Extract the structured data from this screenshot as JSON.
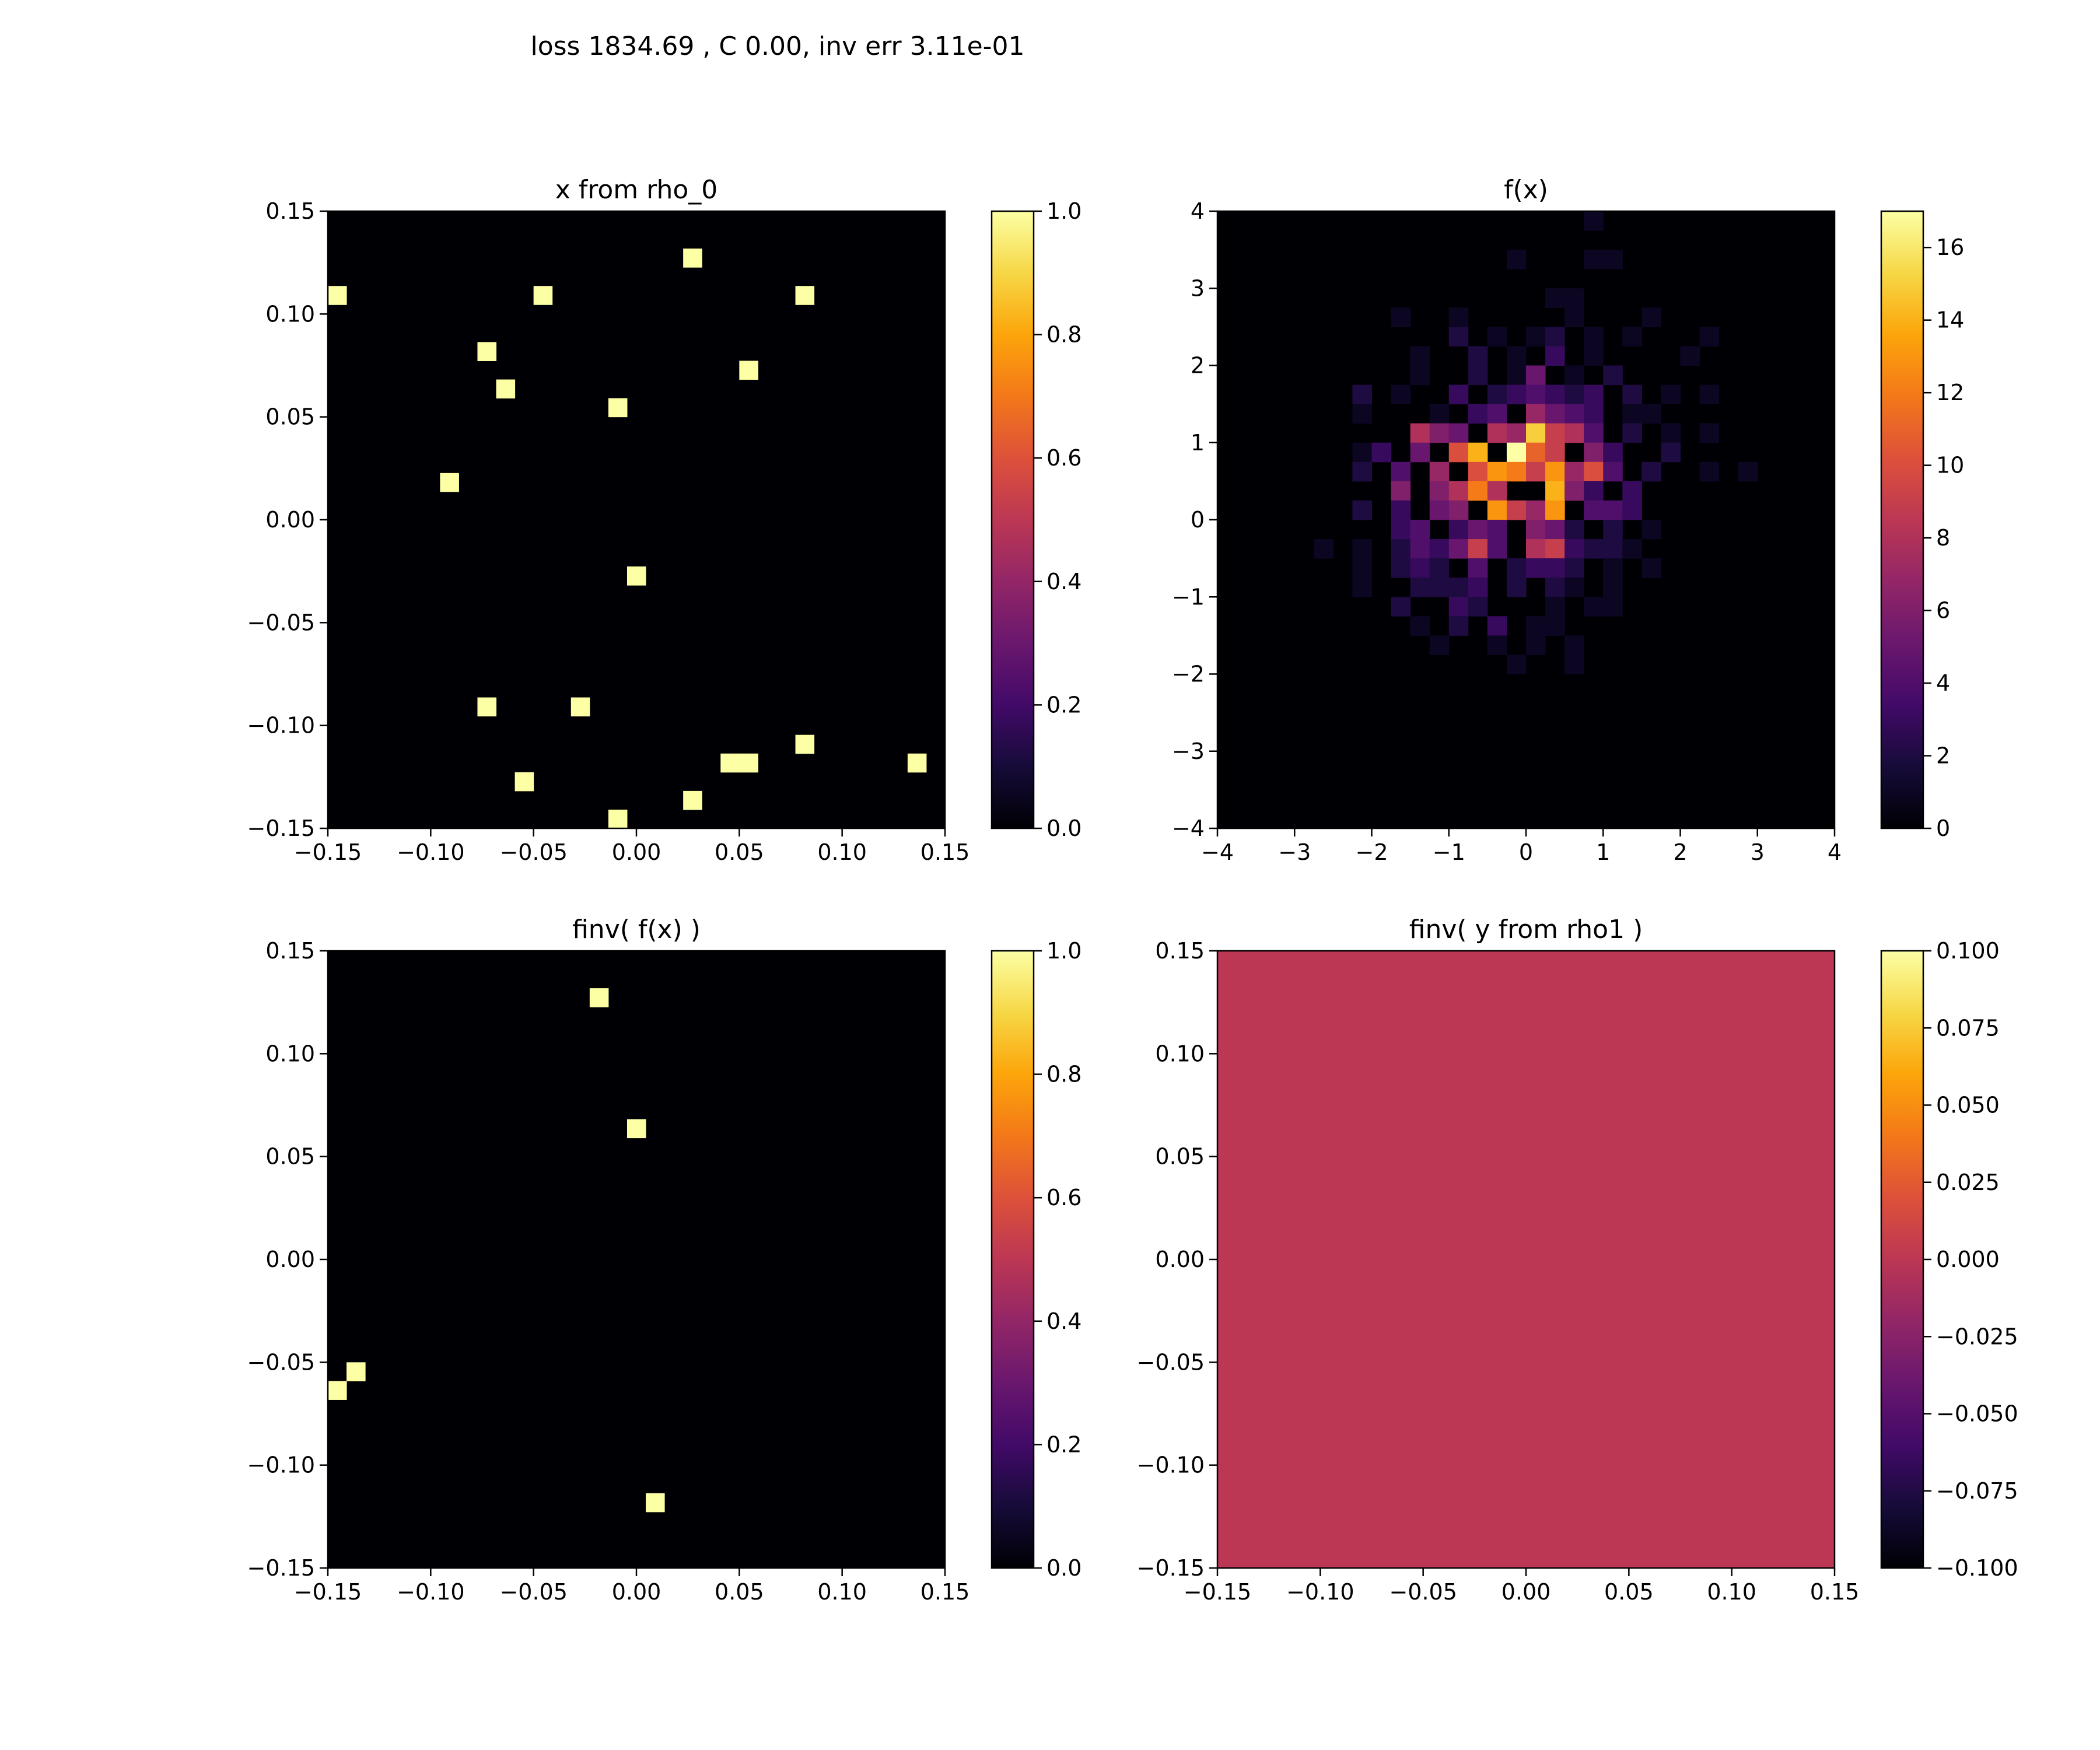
{
  "figure": {
    "suptitle": "loss 1834.69  ,  C 0.00, inv err 3.11e-01"
  },
  "chart_data": [
    {
      "type": "heatmap",
      "title": "x from rho_0",
      "xlim": [
        -0.15,
        0.15
      ],
      "ylim": [
        -0.15,
        0.15
      ],
      "xticks": [
        "−0.15",
        "−0.10",
        "−0.05",
        "0.00",
        "0.05",
        "0.10",
        "0.15"
      ],
      "yticks": [
        "−0.15",
        "−0.10",
        "−0.05",
        "0.00",
        "0.05",
        "0.10",
        "0.15"
      ],
      "bins": 33,
      "colormap": "inferno",
      "background_value": 0,
      "vmin": 0,
      "vmax": 1,
      "colorbar_ticks": [
        "0.0",
        "0.2",
        "0.4",
        "0.6",
        "0.8",
        "1.0"
      ],
      "cells": [
        {
          "x": -0.145,
          "y": 0.109,
          "v": 1
        },
        {
          "x": -0.045,
          "y": 0.109,
          "v": 1
        },
        {
          "x": 0.027,
          "y": 0.127,
          "v": 1
        },
        {
          "x": 0.082,
          "y": 0.109,
          "v": 1
        },
        {
          "x": -0.073,
          "y": 0.082,
          "v": 1
        },
        {
          "x": -0.064,
          "y": 0.064,
          "v": 1
        },
        {
          "x": 0.055,
          "y": 0.073,
          "v": 1
        },
        {
          "x": -0.009,
          "y": 0.055,
          "v": 1
        },
        {
          "x": -0.091,
          "y": 0.018,
          "v": 1
        },
        {
          "x": 0.0,
          "y": -0.027,
          "v": 1
        },
        {
          "x": -0.073,
          "y": -0.091,
          "v": 1
        },
        {
          "x": -0.027,
          "y": -0.091,
          "v": 1
        },
        {
          "x": 0.082,
          "y": -0.109,
          "v": 1
        },
        {
          "x": 0.045,
          "y": -0.118,
          "v": 1
        },
        {
          "x": 0.055,
          "y": -0.118,
          "v": 1
        },
        {
          "x": 0.136,
          "y": -0.118,
          "v": 1
        },
        {
          "x": -0.055,
          "y": -0.127,
          "v": 1
        },
        {
          "x": 0.027,
          "y": -0.136,
          "v": 1
        },
        {
          "x": -0.009,
          "y": -0.145,
          "v": 1
        }
      ]
    },
    {
      "type": "heatmap",
      "title": "f(x)",
      "xlim": [
        -4,
        4
      ],
      "ylim": [
        -4,
        4
      ],
      "xticks": [
        "−4",
        "−3",
        "−2",
        "−1",
        "0",
        "1",
        "2",
        "3",
        "4"
      ],
      "yticks": [
        "−4",
        "−3",
        "−2",
        "−1",
        "0",
        "1",
        "2",
        "3",
        "4"
      ],
      "bins": 32,
      "colormap": "inferno",
      "background_value": 0,
      "vmin": 0,
      "vmax": 17,
      "colorbar_ticks": [
        "0",
        "2",
        "4",
        "6",
        "8",
        "10",
        "12",
        "14",
        "16"
      ],
      "cells": [
        {
          "x": 0.94,
          "y": 3.88,
          "v": 1
        },
        {
          "x": -0.25,
          "y": 3.38,
          "v": 1
        },
        {
          "x": 0.94,
          "y": 3.38,
          "v": 1
        },
        {
          "x": 1.19,
          "y": 3.38,
          "v": 1
        },
        {
          "x": 0.31,
          "y": 2.88,
          "v": 1
        },
        {
          "x": 0.56,
          "y": 2.88,
          "v": 1
        },
        {
          "x": -1.75,
          "y": 2.63,
          "v": 1
        },
        {
          "x": -0.88,
          "y": 2.63,
          "v": 1
        },
        {
          "x": 0.69,
          "y": 2.63,
          "v": 1
        },
        {
          "x": 1.56,
          "y": 2.63,
          "v": 1
        },
        {
          "x": -1.0,
          "y": 2.38,
          "v": 2
        },
        {
          "x": -0.5,
          "y": 2.38,
          "v": 1
        },
        {
          "x": 0.0,
          "y": 2.38,
          "v": 1
        },
        {
          "x": 0.31,
          "y": 2.38,
          "v": 2
        },
        {
          "x": 0.81,
          "y": 2.38,
          "v": 1
        },
        {
          "x": 1.31,
          "y": 2.38,
          "v": 1
        },
        {
          "x": 2.38,
          "y": 2.38,
          "v": 1
        },
        {
          "x": -1.31,
          "y": 2.13,
          "v": 1
        },
        {
          "x": -0.75,
          "y": 2.13,
          "v": 2
        },
        {
          "x": -0.13,
          "y": 2.13,
          "v": 1
        },
        {
          "x": 0.31,
          "y": 2.13,
          "v": 3
        },
        {
          "x": 0.88,
          "y": 2.13,
          "v": 1
        },
        {
          "x": 2.13,
          "y": 2.13,
          "v": 1
        },
        {
          "x": -1.44,
          "y": 1.88,
          "v": 1
        },
        {
          "x": -0.75,
          "y": 1.88,
          "v": 2
        },
        {
          "x": -0.25,
          "y": 1.88,
          "v": 1
        },
        {
          "x": 0.0,
          "y": 1.88,
          "v": 5
        },
        {
          "x": 0.5,
          "y": 1.88,
          "v": 1
        },
        {
          "x": 1.19,
          "y": 1.88,
          "v": 2
        },
        {
          "x": -2.25,
          "y": 1.63,
          "v": 2
        },
        {
          "x": -1.56,
          "y": 1.63,
          "v": 1
        },
        {
          "x": -0.94,
          "y": 1.63,
          "v": 3
        },
        {
          "x": -0.44,
          "y": 1.63,
          "v": 2
        },
        {
          "x": -0.13,
          "y": 1.63,
          "v": 3
        },
        {
          "x": 0.13,
          "y": 1.63,
          "v": 4
        },
        {
          "x": 0.38,
          "y": 1.63,
          "v": 3
        },
        {
          "x": 0.69,
          "y": 1.63,
          "v": 2
        },
        {
          "x": 0.94,
          "y": 1.63,
          "v": 3
        },
        {
          "x": 1.31,
          "y": 1.63,
          "v": 2
        },
        {
          "x": 1.94,
          "y": 1.63,
          "v": 1
        },
        {
          "x": 2.38,
          "y": 1.63,
          "v": 1
        },
        {
          "x": -2.06,
          "y": 1.38,
          "v": 1
        },
        {
          "x": -1.19,
          "y": 1.38,
          "v": 1
        },
        {
          "x": -0.69,
          "y": 1.38,
          "v": 3
        },
        {
          "x": -0.31,
          "y": 1.38,
          "v": 4
        },
        {
          "x": 0.0,
          "y": 1.38,
          "v": 7
        },
        {
          "x": 0.25,
          "y": 1.38,
          "v": 5
        },
        {
          "x": 0.56,
          "y": 1.38,
          "v": 4
        },
        {
          "x": 0.81,
          "y": 1.38,
          "v": 3
        },
        {
          "x": 1.31,
          "y": 1.38,
          "v": 1
        },
        {
          "x": 1.63,
          "y": 1.38,
          "v": 1
        },
        {
          "x": -1.44,
          "y": 1.0,
          "v": 8
        },
        {
          "x": -1.13,
          "y": 1.0,
          "v": 6
        },
        {
          "x": -0.81,
          "y": 1.0,
          "v": 5
        },
        {
          "x": -0.5,
          "y": 1.0,
          "v": 8
        },
        {
          "x": -0.19,
          "y": 1.0,
          "v": 7
        },
        {
          "x": 0.0,
          "y": 1.0,
          "v": 15
        },
        {
          "x": 0.25,
          "y": 1.0,
          "v": 9
        },
        {
          "x": 0.5,
          "y": 1.0,
          "v": 8
        },
        {
          "x": 0.88,
          "y": 1.0,
          "v": 4
        },
        {
          "x": 1.31,
          "y": 1.0,
          "v": 2
        },
        {
          "x": 1.81,
          "y": 1.0,
          "v": 1
        },
        {
          "x": 2.31,
          "y": 1.0,
          "v": 1
        },
        {
          "x": -2.25,
          "y": 0.75,
          "v": 1
        },
        {
          "x": -1.81,
          "y": 0.75,
          "v": 3
        },
        {
          "x": -1.38,
          "y": 0.75,
          "v": 5
        },
        {
          "x": -0.88,
          "y": 0.75,
          "v": 10
        },
        {
          "x": -0.56,
          "y": 0.75,
          "v": 14
        },
        {
          "x": -0.25,
          "y": 0.75,
          "v": 17
        },
        {
          "x": 0.13,
          "y": 0.75,
          "v": 11
        },
        {
          "x": 0.44,
          "y": 0.75,
          "v": 9
        },
        {
          "x": 0.75,
          "y": 0.75,
          "v": 6
        },
        {
          "x": 1.13,
          "y": 0.75,
          "v": 3
        },
        {
          "x": 1.81,
          "y": 0.75,
          "v": 2
        },
        {
          "x": -2.06,
          "y": 0.5,
          "v": 2
        },
        {
          "x": -1.56,
          "y": 0.5,
          "v": 4
        },
        {
          "x": -1.06,
          "y": 0.5,
          "v": 7
        },
        {
          "x": -0.69,
          "y": 0.5,
          "v": 10
        },
        {
          "x": -0.44,
          "y": 0.5,
          "v": 13
        },
        {
          "x": -0.19,
          "y": 0.5,
          "v": 12
        },
        {
          "x": 0.06,
          "y": 0.5,
          "v": 9
        },
        {
          "x": 0.31,
          "y": 0.5,
          "v": 13
        },
        {
          "x": 0.56,
          "y": 0.5,
          "v": 7
        },
        {
          "x": 0.75,
          "y": 0.5,
          "v": 10
        },
        {
          "x": 1.13,
          "y": 0.5,
          "v": 4
        },
        {
          "x": 1.56,
          "y": 0.5,
          "v": 2
        },
        {
          "x": 2.31,
          "y": 0.5,
          "v": 1
        },
        {
          "x": 2.94,
          "y": 0.5,
          "v": 1
        },
        {
          "x": -1.69,
          "y": 0.25,
          "v": 6
        },
        {
          "x": -1.25,
          "y": 0.25,
          "v": 6
        },
        {
          "x": -0.94,
          "y": 0.25,
          "v": 8
        },
        {
          "x": -0.56,
          "y": 0.25,
          "v": 12
        },
        {
          "x": -0.31,
          "y": 0.25,
          "v": 8
        },
        {
          "x": 0.25,
          "y": 0.25,
          "v": 14
        },
        {
          "x": 0.56,
          "y": 0.25,
          "v": 6
        },
        {
          "x": 0.88,
          "y": 0.25,
          "v": 3
        },
        {
          "x": 1.31,
          "y": 0.25,
          "v": 3
        },
        {
          "x": -2.06,
          "y": 0.0,
          "v": 2
        },
        {
          "x": -1.56,
          "y": 0.0,
          "v": 3
        },
        {
          "x": -1.19,
          "y": 0.0,
          "v": 5
        },
        {
          "x": -0.81,
          "y": 0.0,
          "v": 6
        },
        {
          "x": -0.44,
          "y": 0.0,
          "v": 13
        },
        {
          "x": -0.13,
          "y": 0.0,
          "v": 9
        },
        {
          "x": 0.19,
          "y": 0.0,
          "v": 7
        },
        {
          "x": 0.44,
          "y": 0.0,
          "v": 13
        },
        {
          "x": 0.81,
          "y": 0.0,
          "v": 4
        },
        {
          "x": 1.19,
          "y": 0.0,
          "v": 4
        },
        {
          "x": 1.44,
          "y": 0.0,
          "v": 3
        },
        {
          "x": -1.69,
          "y": -0.25,
          "v": 3
        },
        {
          "x": -1.31,
          "y": -0.25,
          "v": 4
        },
        {
          "x": -0.94,
          "y": -0.25,
          "v": 3
        },
        {
          "x": -0.56,
          "y": -0.25,
          "v": 5
        },
        {
          "x": -0.31,
          "y": -0.25,
          "v": 4
        },
        {
          "x": 0.0,
          "y": -0.25,
          "v": 6
        },
        {
          "x": 0.31,
          "y": -0.25,
          "v": 5
        },
        {
          "x": 0.69,
          "y": -0.25,
          "v": 2
        },
        {
          "x": 1.06,
          "y": -0.25,
          "v": 2
        },
        {
          "x": 1.69,
          "y": -0.25,
          "v": 1
        },
        {
          "x": -2.69,
          "y": -0.5,
          "v": 1
        },
        {
          "x": -2.19,
          "y": -0.5,
          "v": 1
        },
        {
          "x": -1.69,
          "y": -0.5,
          "v": 2
        },
        {
          "x": -1.38,
          "y": -0.5,
          "v": 4
        },
        {
          "x": -1.06,
          "y": -0.5,
          "v": 3
        },
        {
          "x": -0.81,
          "y": -0.5,
          "v": 5
        },
        {
          "x": -0.56,
          "y": -0.5,
          "v": 9
        },
        {
          "x": -0.31,
          "y": -0.5,
          "v": 4
        },
        {
          "x": 0.0,
          "y": -0.5,
          "v": 8
        },
        {
          "x": 0.31,
          "y": -0.5,
          "v": 9
        },
        {
          "x": 0.56,
          "y": -0.5,
          "v": 3
        },
        {
          "x": 0.88,
          "y": -0.5,
          "v": 2
        },
        {
          "x": 1.13,
          "y": -0.5,
          "v": 2
        },
        {
          "x": 1.44,
          "y": -0.5,
          "v": 1
        },
        {
          "x": -2.06,
          "y": -0.75,
          "v": 1
        },
        {
          "x": -1.69,
          "y": -0.75,
          "v": 2
        },
        {
          "x": -1.44,
          "y": -0.75,
          "v": 3
        },
        {
          "x": -1.06,
          "y": -0.75,
          "v": 2
        },
        {
          "x": -0.56,
          "y": -0.75,
          "v": 4
        },
        {
          "x": -0.25,
          "y": -0.75,
          "v": 2
        },
        {
          "x": 0.06,
          "y": -0.75,
          "v": 3
        },
        {
          "x": 0.38,
          "y": -0.75,
          "v": 3
        },
        {
          "x": 0.69,
          "y": -0.75,
          "v": 2
        },
        {
          "x": 1.06,
          "y": -0.75,
          "v": 1
        },
        {
          "x": 1.56,
          "y": -0.75,
          "v": 1
        },
        {
          "x": -2.19,
          "y": -1.0,
          "v": 1
        },
        {
          "x": -1.44,
          "y": -1.0,
          "v": 2
        },
        {
          "x": -1.06,
          "y": -1.0,
          "v": 2
        },
        {
          "x": -0.81,
          "y": -1.0,
          "v": 2
        },
        {
          "x": -0.56,
          "y": -1.0,
          "v": 3
        },
        {
          "x": -0.19,
          "y": -1.0,
          "v": 2
        },
        {
          "x": 0.31,
          "y": -1.0,
          "v": 2
        },
        {
          "x": 0.69,
          "y": -1.0,
          "v": 1
        },
        {
          "x": 1.19,
          "y": -1.0,
          "v": 1
        },
        {
          "x": -1.56,
          "y": -1.25,
          "v": 2
        },
        {
          "x": -0.94,
          "y": -1.25,
          "v": 3
        },
        {
          "x": -0.56,
          "y": -1.25,
          "v": 2
        },
        {
          "x": 0.44,
          "y": -1.25,
          "v": 1
        },
        {
          "x": 0.75,
          "y": -1.25,
          "v": 1
        },
        {
          "x": 1.19,
          "y": -1.25,
          "v": 1
        },
        {
          "x": -1.44,
          "y": -1.5,
          "v": 1
        },
        {
          "x": -0.94,
          "y": -1.5,
          "v": 2
        },
        {
          "x": -0.5,
          "y": -1.5,
          "v": 3
        },
        {
          "x": 0.0,
          "y": -1.5,
          "v": 1
        },
        {
          "x": 0.44,
          "y": -1.5,
          "v": 1
        },
        {
          "x": -1.19,
          "y": -1.75,
          "v": 1
        },
        {
          "x": -0.5,
          "y": -1.75,
          "v": 1
        },
        {
          "x": 0.0,
          "y": -1.75,
          "v": 1
        },
        {
          "x": 0.56,
          "y": -1.75,
          "v": 1
        },
        {
          "x": -0.13,
          "y": -1.88,
          "v": 1
        },
        {
          "x": 0.69,
          "y": -1.88,
          "v": 1
        }
      ]
    },
    {
      "type": "heatmap",
      "title": "finv( f(x) )",
      "xlim": [
        -0.15,
        0.15
      ],
      "ylim": [
        -0.15,
        0.15
      ],
      "xticks": [
        "−0.15",
        "−0.10",
        "−0.05",
        "0.00",
        "0.05",
        "0.10",
        "0.15"
      ],
      "yticks": [
        "−0.15",
        "−0.10",
        "−0.05",
        "0.00",
        "0.05",
        "0.10",
        "0.15"
      ],
      "bins": 33,
      "colormap": "inferno",
      "background_value": 0,
      "vmin": 0,
      "vmax": 1,
      "colorbar_ticks": [
        "0.0",
        "0.2",
        "0.4",
        "0.6",
        "0.8",
        "1.0"
      ],
      "cells": [
        {
          "x": -0.018,
          "y": 0.127,
          "v": 1
        },
        {
          "x": 0.0,
          "y": 0.064,
          "v": 1
        },
        {
          "x": -0.136,
          "y": -0.055,
          "v": 1
        },
        {
          "x": -0.145,
          "y": -0.064,
          "v": 1
        },
        {
          "x": 0.009,
          "y": -0.118,
          "v": 1
        }
      ]
    },
    {
      "type": "heatmap",
      "title": "finv( y from rho1 )",
      "xlim": [
        -0.15,
        0.15
      ],
      "ylim": [
        -0.15,
        0.15
      ],
      "xticks": [
        "−0.15",
        "−0.10",
        "−0.05",
        "0.00",
        "0.05",
        "0.10",
        "0.15"
      ],
      "yticks": [
        "−0.15",
        "−0.10",
        "−0.05",
        "0.00",
        "0.05",
        "0.10",
        "0.15"
      ],
      "bins": 1,
      "colormap": "inferno",
      "background_value": 0,
      "vmin": -0.1,
      "vmax": 0.1,
      "colorbar_ticks": [
        "−0.100",
        "−0.075",
        "−0.050",
        "−0.025",
        "0.000",
        "0.025",
        "0.050",
        "0.075",
        "0.100"
      ],
      "cells": []
    }
  ]
}
